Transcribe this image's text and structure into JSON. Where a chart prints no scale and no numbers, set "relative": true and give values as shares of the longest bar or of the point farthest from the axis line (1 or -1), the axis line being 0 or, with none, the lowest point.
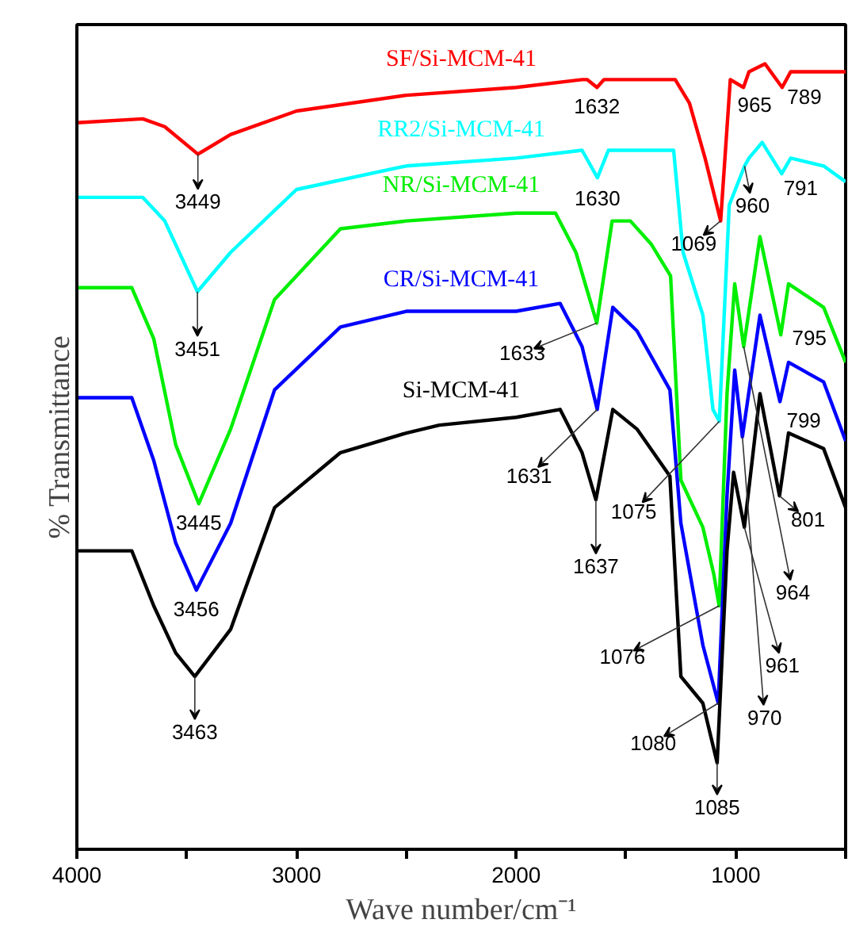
{
  "chart_data": {
    "type": "line",
    "relative": true,
    "xlabel": "Wave number/cm⁻¹",
    "ylabel": "% Transmittance",
    "xlim": [
      4000,
      500
    ],
    "xticks": [
      4000,
      {
        "value": 3500,
        "label": null
      },
      3000,
      {
        "value": 2500,
        "label": null
      },
      2000,
      {
        "value": 1500,
        "label": null
      },
      1000,
      {
        "value": 500,
        "label": null
      }
    ],
    "tick_labels": "x",
    "grid": false,
    "marker": "none",
    "line_style": "solid",
    "series": [
      {
        "name": "SF/Si-MCM-41",
        "color": "#ff0000",
        "x": [
          4000,
          3700,
          3600,
          3449,
          3300,
          3000,
          2500,
          2000,
          1700,
          1677,
          1632,
          1600,
          1405,
          1276,
          1211,
          1140,
          1069,
          1025,
          965,
          940,
          867,
          789,
          750,
          500
        ],
        "values": [
          0.925,
          0.93,
          0.92,
          0.885,
          0.91,
          0.94,
          0.96,
          0.97,
          0.98,
          0.98,
          0.97,
          0.98,
          0.98,
          0.98,
          0.95,
          0.88,
          0.8,
          0.98,
          0.97,
          0.99,
          1.0,
          0.97,
          0.99,
          0.99
        ]
      },
      {
        "name": "RR2/Si-MCM-41",
        "color": "#00ffff",
        "x": [
          4000,
          3700,
          3600,
          3451,
          3300,
          3000,
          2500,
          2000,
          1700,
          1630,
          1580,
          1400,
          1283,
          1240,
          1150,
          1104,
          1075,
          1030,
          960,
          940,
          880,
          791,
          750,
          600,
          500
        ],
        "values": [
          0.83,
          0.83,
          0.8,
          0.71,
          0.76,
          0.84,
          0.87,
          0.88,
          0.89,
          0.855,
          0.89,
          0.89,
          0.89,
          0.76,
          0.68,
          0.56,
          0.545,
          0.82,
          0.87,
          0.88,
          0.9,
          0.86,
          0.88,
          0.87,
          0.85
        ]
      },
      {
        "name": "NR/Si-MCM-41",
        "color": "#00ee00",
        "x": [
          4000,
          3750,
          3650,
          3550,
          3445,
          3300,
          3100,
          2800,
          2500,
          2000,
          1821,
          1728,
          1633,
          1563,
          1480,
          1384,
          1297,
          1250,
          1150,
          1100,
          1076,
          1040,
          1005,
          964,
          890,
          795,
          760,
          600,
          500
        ],
        "values": [
          0.715,
          0.715,
          0.65,
          0.515,
          0.44,
          0.535,
          0.7,
          0.79,
          0.8,
          0.81,
          0.81,
          0.76,
          0.67,
          0.8,
          0.8,
          0.77,
          0.73,
          0.47,
          0.41,
          0.35,
          0.31,
          0.58,
          0.72,
          0.64,
          0.78,
          0.655,
          0.72,
          0.69,
          0.62
        ]
      },
      {
        "name": "CR/Si-MCM-41",
        "color": "#0000ff",
        "x": [
          4000,
          3750,
          3650,
          3550,
          3456,
          3300,
          3100,
          2800,
          2500,
          2000,
          1800,
          1700,
          1631,
          1560,
          1450,
          1300,
          1250,
          1150,
          1080,
          1040,
          1005,
          970,
          890,
          799,
          760,
          600,
          500
        ],
        "values": [
          0.575,
          0.575,
          0.495,
          0.39,
          0.33,
          0.415,
          0.585,
          0.665,
          0.685,
          0.685,
          0.695,
          0.64,
          0.56,
          0.69,
          0.66,
          0.585,
          0.415,
          0.26,
          0.186,
          0.45,
          0.61,
          0.525,
          0.68,
          0.57,
          0.62,
          0.595,
          0.52
        ]
      },
      {
        "name": "Si-MCM-41",
        "color": "#000000",
        "x": [
          4000,
          3750,
          3650,
          3550,
          3463,
          3300,
          3100,
          2800,
          2500,
          2350,
          2000,
          1800,
          1700,
          1637,
          1560,
          1450,
          1300,
          1250,
          1150,
          1085,
          1040,
          1010,
          961,
          890,
          801,
          760,
          600,
          500
        ],
        "values": [
          0.38,
          0.38,
          0.31,
          0.25,
          0.22,
          0.28,
          0.435,
          0.505,
          0.53,
          0.54,
          0.55,
          0.56,
          0.505,
          0.445,
          0.56,
          0.535,
          0.475,
          0.22,
          0.186,
          0.11,
          0.38,
          0.48,
          0.41,
          0.58,
          0.45,
          0.53,
          0.51,
          0.435
        ]
      }
    ],
    "annotations": [
      {
        "text": "3449",
        "x": 3449,
        "y": 0.885
      },
      {
        "text": "1632",
        "x": 1632,
        "y": 0.97
      },
      {
        "text": "1069",
        "x": 1069,
        "y": 0.8
      },
      {
        "text": "965",
        "x": 965,
        "y": 0.97
      },
      {
        "text": "789",
        "x": 789,
        "y": 0.97
      },
      {
        "text": "3451",
        "x": 3451,
        "y": 0.71
      },
      {
        "text": "1630",
        "x": 1630,
        "y": 0.855
      },
      {
        "text": "1075",
        "x": 1075,
        "y": 0.545
      },
      {
        "text": "960",
        "x": 960,
        "y": 0.87
      },
      {
        "text": "791",
        "x": 791,
        "y": 0.86
      },
      {
        "text": "3445",
        "x": 3445,
        "y": 0.44
      },
      {
        "text": "1633",
        "x": 1633,
        "y": 0.67
      },
      {
        "text": "1076",
        "x": 1076,
        "y": 0.31
      },
      {
        "text": "964",
        "x": 964,
        "y": 0.64
      },
      {
        "text": "795",
        "x": 795,
        "y": 0.655
      },
      {
        "text": "3456",
        "x": 3456,
        "y": 0.33
      },
      {
        "text": "1631",
        "x": 1631,
        "y": 0.56
      },
      {
        "text": "1080",
        "x": 1080,
        "y": 0.186
      },
      {
        "text": "970",
        "x": 970,
        "y": 0.525
      },
      {
        "text": "799",
        "x": 799,
        "y": 0.57
      },
      {
        "text": "3463",
        "x": 3463,
        "y": 0.22
      },
      {
        "text": "1637",
        "x": 1637,
        "y": 0.445
      },
      {
        "text": "1085",
        "x": 1085,
        "y": 0.11
      },
      {
        "text": "961",
        "x": 961,
        "y": 0.41
      },
      {
        "text": "801",
        "x": 801,
        "y": 0.45
      }
    ]
  }
}
